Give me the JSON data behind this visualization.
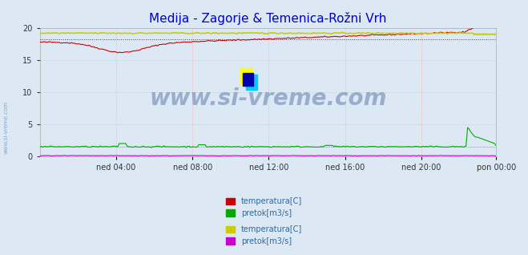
{
  "title": "Medija - Zagorje & Temenica-Rožni Vrh",
  "title_color": "#0000cc",
  "title_fontsize": 11,
  "bg_color": "#dce9f5",
  "plot_bg_color": "#dce9f5",
  "ylim": [
    0,
    20
  ],
  "yticks": [
    0,
    5,
    10,
    15,
    20
  ],
  "xtick_labels": [
    "ned 04:00",
    "ned 08:00",
    "ned 12:00",
    "ned 16:00",
    "ned 20:00",
    "pon 00:00"
  ],
  "n_points": 288,
  "watermark_text": "www.si-vreme.com",
  "watermark_color": "#1a4080",
  "watermark_alpha": 0.35,
  "logo_colors": [
    "#ffff00",
    "#00aaff",
    "#0000aa"
  ],
  "legend_items": [
    {
      "label": "temperatura[C]",
      "color": "#cc0000"
    },
    {
      "label": "pretok[m3/s]",
      "color": "#00aa00"
    },
    {
      "label": "temperatura[C]",
      "color": "#cccc00"
    },
    {
      "label": "pretok[m3/s]",
      "color": "#cc00cc"
    }
  ],
  "grid_color": "#ffaaaa",
  "grid_style": "--",
  "grid_alpha": 0.7
}
